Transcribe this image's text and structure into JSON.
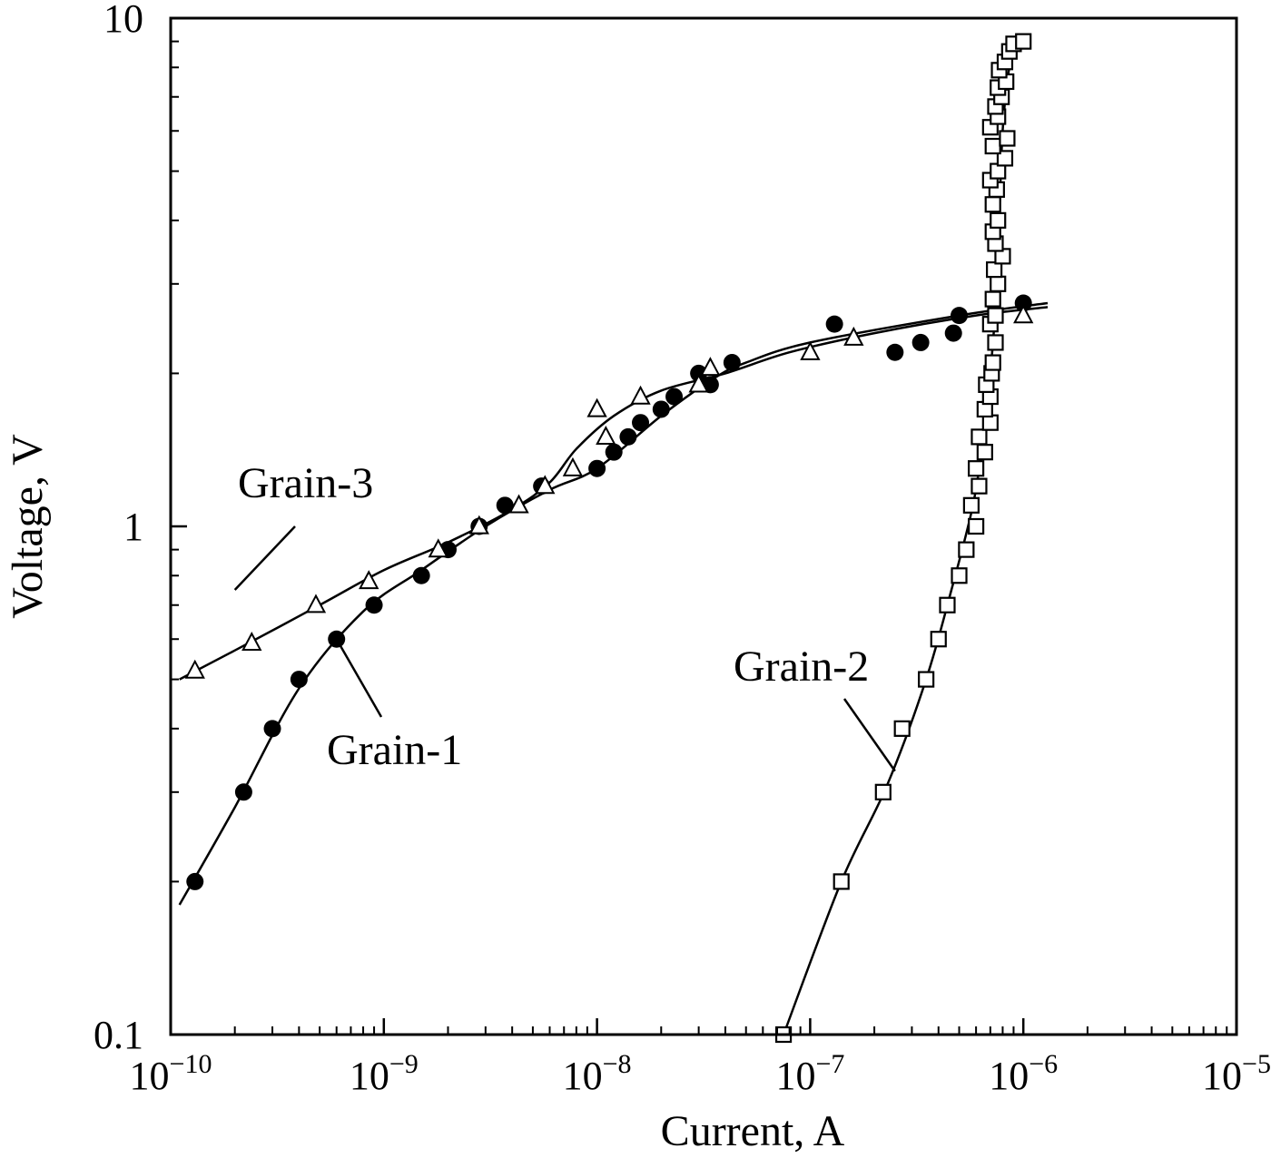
{
  "chart_data": {
    "type": "scatter",
    "xlabel": "Current, A",
    "ylabel": "Voltage, V",
    "xscale": "log",
    "yscale": "log",
    "xlim": [
      1e-10,
      1e-05
    ],
    "ylim": [
      0.1,
      10
    ],
    "x_ticks": [
      {
        "value": 1e-10,
        "mantissa": "10",
        "exponent": "−10"
      },
      {
        "value": 1e-09,
        "mantissa": "10",
        "exponent": "−9"
      },
      {
        "value": 1e-08,
        "mantissa": "10",
        "exponent": "−8"
      },
      {
        "value": 1e-07,
        "mantissa": "10",
        "exponent": "−7"
      },
      {
        "value": 1e-06,
        "mantissa": "10",
        "exponent": "−6"
      },
      {
        "value": 1e-05,
        "mantissa": "10",
        "exponent": "−5"
      }
    ],
    "y_ticks": [
      {
        "value": 0.1,
        "label": "0.1"
      },
      {
        "value": 1,
        "label": "1"
      },
      {
        "value": 10,
        "label": "10"
      }
    ],
    "grid": false,
    "legend": "none",
    "series": [
      {
        "name": "Grain-1",
        "marker": "filled-circle",
        "label_anchor": [
          6e-10,
          0.6
        ],
        "points": [
          [
            1.3e-10,
            0.2
          ],
          [
            2.2e-10,
            0.3
          ],
          [
            3e-10,
            0.4
          ],
          [
            4e-10,
            0.5
          ],
          [
            6e-10,
            0.6
          ],
          [
            9e-10,
            0.7
          ],
          [
            1.5e-09,
            0.8
          ],
          [
            2e-09,
            0.9
          ],
          [
            2.8e-09,
            1.0
          ],
          [
            3.7e-09,
            1.1
          ],
          [
            5.5e-09,
            1.2
          ],
          [
            1e-08,
            1.3
          ],
          [
            1.2e-08,
            1.4
          ],
          [
            1.4e-08,
            1.5
          ],
          [
            1.6e-08,
            1.6
          ],
          [
            2e-08,
            1.7
          ],
          [
            2.3e-08,
            1.8
          ],
          [
            3e-08,
            2.0
          ],
          [
            3.4e-08,
            1.9
          ],
          [
            4.3e-08,
            2.1
          ],
          [
            1.3e-07,
            2.5
          ],
          [
            2.5e-07,
            2.2
          ],
          [
            3.3e-07,
            2.3
          ],
          [
            4.7e-07,
            2.4
          ],
          [
            5e-07,
            2.6
          ],
          [
            1e-06,
            2.75
          ]
        ],
        "fit": [
          [
            1.1e-10,
            0.18
          ],
          [
            2e-10,
            0.28
          ],
          [
            4e-10,
            0.48
          ],
          [
            8e-10,
            0.68
          ],
          [
            1.5e-09,
            0.82
          ],
          [
            3e-09,
            1.0
          ],
          [
            6e-09,
            1.18
          ],
          [
            1e-08,
            1.3
          ],
          [
            2e-08,
            1.65
          ],
          [
            3.5e-08,
            1.95
          ],
          [
            5e-08,
            2.1
          ],
          [
            1e-07,
            2.3
          ],
          [
            5e-07,
            2.6
          ],
          [
            1.3e-06,
            2.75
          ]
        ]
      },
      {
        "name": "Grain-2",
        "marker": "open-square",
        "label_anchor": [
          2.5e-07,
          0.33
        ],
        "points": [
          [
            7.5e-08,
            0.1
          ],
          [
            1.4e-07,
            0.2
          ],
          [
            2.2e-07,
            0.3
          ],
          [
            2.7e-07,
            0.4
          ],
          [
            3.5e-07,
            0.5
          ],
          [
            4e-07,
            0.6
          ],
          [
            4.4e-07,
            0.7
          ],
          [
            5e-07,
            0.8
          ],
          [
            5.4e-07,
            0.9
          ],
          [
            6e-07,
            1.0
          ],
          [
            5.7e-07,
            1.1
          ],
          [
            6.2e-07,
            1.2
          ],
          [
            6e-07,
            1.3
          ],
          [
            6.6e-07,
            1.4
          ],
          [
            6.2e-07,
            1.5
          ],
          [
            7e-07,
            1.6
          ],
          [
            6.6e-07,
            1.7
          ],
          [
            7e-07,
            1.8
          ],
          [
            6.7e-07,
            1.9
          ],
          [
            7.1e-07,
            2.0
          ],
          [
            7.2e-07,
            2.1
          ],
          [
            7.4e-07,
            2.3
          ],
          [
            7e-07,
            2.5
          ],
          [
            7.4e-07,
            2.6
          ],
          [
            7.2e-07,
            2.8
          ],
          [
            7.6e-07,
            3.0
          ],
          [
            7.3e-07,
            3.2
          ],
          [
            8e-07,
            3.4
          ],
          [
            7.4e-07,
            3.6
          ],
          [
            7.2e-07,
            3.8
          ],
          [
            7.6e-07,
            4.0
          ],
          [
            7.2e-07,
            4.3
          ],
          [
            7.5e-07,
            4.6
          ],
          [
            7e-07,
            4.8
          ],
          [
            7.6e-07,
            5.0
          ],
          [
            8.2e-07,
            5.3
          ],
          [
            7.2e-07,
            5.6
          ],
          [
            8.4e-07,
            5.8
          ],
          [
            7e-07,
            6.1
          ],
          [
            7.6e-07,
            6.4
          ],
          [
            7.4e-07,
            6.7
          ],
          [
            7.9e-07,
            7.0
          ],
          [
            7.6e-07,
            7.3
          ],
          [
            8.3e-07,
            7.5
          ],
          [
            7.7e-07,
            7.9
          ],
          [
            8.2e-07,
            8.2
          ],
          [
            8.6e-07,
            8.6
          ],
          [
            9e-07,
            8.9
          ],
          [
            1e-06,
            9.0
          ]
        ],
        "fit": [
          [
            7.5e-08,
            0.1
          ],
          [
            1.4e-07,
            0.2
          ],
          [
            2.3e-07,
            0.31
          ],
          [
            3.5e-07,
            0.5
          ],
          [
            4.6e-07,
            0.75
          ],
          [
            5.8e-07,
            1.1
          ],
          [
            6.5e-07,
            1.5
          ],
          [
            7e-07,
            2.0
          ],
          [
            7.4e-07,
            2.7
          ],
          [
            7.7e-07,
            4.0
          ],
          [
            8e-07,
            6.0
          ],
          [
            8.6e-07,
            8.0
          ],
          [
            9.5e-07,
            9.0
          ]
        ]
      },
      {
        "name": "Grain-3",
        "marker": "open-triangle",
        "label_anchor": [
          2e-10,
          0.75
        ],
        "points": [
          [
            1.3e-10,
            0.52
          ],
          [
            2.4e-10,
            0.59
          ],
          [
            4.8e-10,
            0.7
          ],
          [
            8.5e-10,
            0.78
          ],
          [
            1.8e-09,
            0.9
          ],
          [
            2.8e-09,
            1.0
          ],
          [
            4.3e-09,
            1.1
          ],
          [
            5.7e-09,
            1.2
          ],
          [
            7.7e-09,
            1.3
          ],
          [
            1.1e-08,
            1.5
          ],
          [
            1e-08,
            1.7
          ],
          [
            1.6e-08,
            1.8
          ],
          [
            3e-08,
            1.9
          ],
          [
            3.4e-08,
            2.05
          ],
          [
            1e-07,
            2.2
          ],
          [
            1.6e-07,
            2.35
          ],
          [
            1e-06,
            2.6
          ]
        ],
        "fit": [
          [
            1.1e-10,
            0.5
          ],
          [
            2e-10,
            0.57
          ],
          [
            5e-10,
            0.7
          ],
          [
            1e-09,
            0.82
          ],
          [
            2e-09,
            0.93
          ],
          [
            4e-09,
            1.08
          ],
          [
            6e-09,
            1.22
          ],
          [
            8e-09,
            1.42
          ],
          [
            1.2e-08,
            1.65
          ],
          [
            2e-08,
            1.85
          ],
          [
            4e-08,
            2.0
          ],
          [
            8e-08,
            2.2
          ],
          [
            2e-07,
            2.4
          ],
          [
            6e-07,
            2.6
          ],
          [
            1.3e-06,
            2.7
          ]
        ]
      }
    ]
  }
}
